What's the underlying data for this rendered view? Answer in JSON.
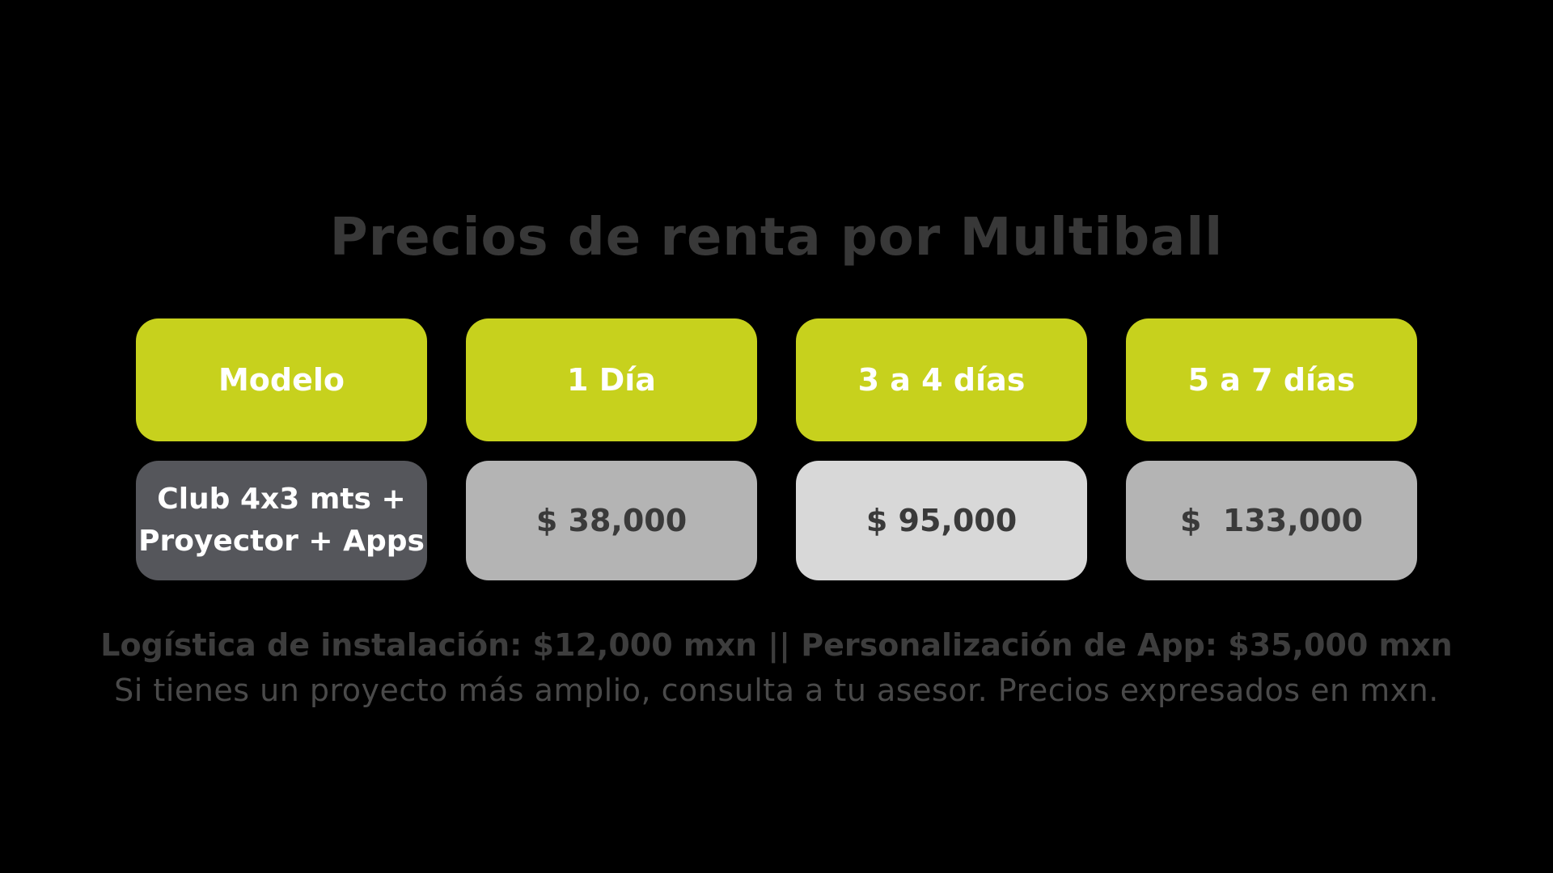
{
  "page": {
    "background_color": "#000000",
    "accent_color": "#c7d11d",
    "dark_box_color": "#55565b",
    "mid_gray_color": "#b4b4b4",
    "light_gray_color": "#d8d8d8",
    "text_dark_color": "#383838"
  },
  "title": {
    "text": "Precios de renta por Multiball"
  },
  "table": {
    "columns": [
      {
        "label": "Modelo"
      },
      {
        "label": "1 Día"
      },
      {
        "label": "3 a 4 días"
      },
      {
        "label": "5 a 7 días"
      }
    ],
    "row": {
      "model_line1": "Club 4x3 mts +",
      "model_line2": "Proyector + Apps",
      "prices": [
        {
          "value": "$ 38,000"
        },
        {
          "value": "$ 95,000"
        },
        {
          "value": "$  133,000"
        }
      ]
    }
  },
  "footer": {
    "line1": "Logística de instalación: $12,000 mxn || Personalización de App: $35,000 mxn",
    "line2": "Si tienes un proyecto más amplio, consulta a tu asesor. Precios expresados en mxn."
  }
}
